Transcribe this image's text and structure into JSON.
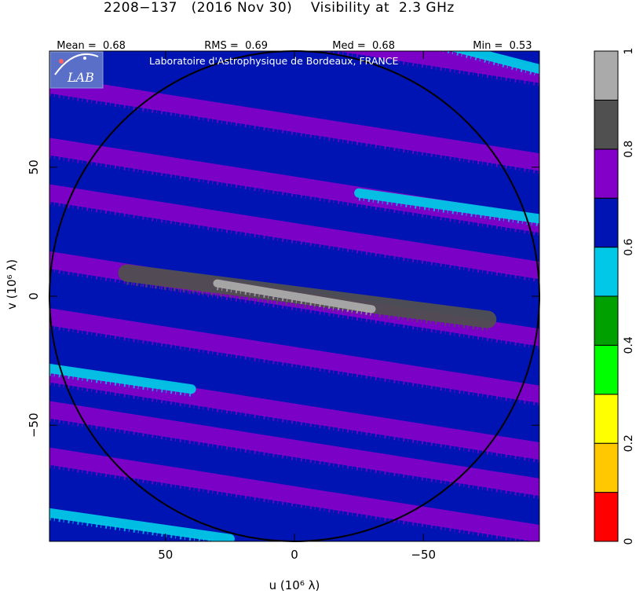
{
  "chart_data": {
    "type": "heatmap",
    "title": "2208−137   (2016 Nov 30)    Visibility at  2.3 GHz",
    "stats": [
      {
        "label": "Mean =",
        "value": "0.68"
      },
      {
        "label": "RMS =",
        "value": "0.69"
      },
      {
        "label": "Med =",
        "value": "0.68"
      },
      {
        "label": "Min =",
        "value": "0.53"
      }
    ],
    "watermark": "Laboratoire d'Astrophysique de Bordeaux, FRANCE",
    "logo_text": "LAB",
    "xlabel": "u  (10⁶ λ)",
    "ylabel": "v  (10⁶ λ)",
    "xlim": [
      95,
      -95
    ],
    "ylim": [
      -95,
      95
    ],
    "xticks": [
      {
        "value": 50,
        "label": "50"
      },
      {
        "value": 0,
        "label": "0"
      },
      {
        "value": -50,
        "label": "−50"
      }
    ],
    "yticks": [
      {
        "value": 50,
        "label": "50"
      },
      {
        "value": 0,
        "label": "0"
      },
      {
        "value": -50,
        "label": "−50"
      }
    ],
    "circle_radius": 95,
    "background_value": 0.65,
    "colorbar": {
      "range": [
        0,
        1
      ],
      "ticks": [
        {
          "value": 0,
          "label": "0"
        },
        {
          "value": 0.2,
          "label": "0.2"
        },
        {
          "value": 0.4,
          "label": "0.4"
        },
        {
          "value": 0.6,
          "label": "0.6"
        },
        {
          "value": 0.8,
          "label": "0.8"
        },
        {
          "value": 1,
          "label": "1"
        }
      ],
      "levels": [
        {
          "from": 0.0,
          "to": 0.1,
          "color": "#ff0000"
        },
        {
          "from": 0.1,
          "to": 0.2,
          "color": "#ffc800"
        },
        {
          "from": 0.2,
          "to": 0.3,
          "color": "#ffff00"
        },
        {
          "from": 0.3,
          "to": 0.4,
          "color": "#00ff00"
        },
        {
          "from": 0.4,
          "to": 0.5,
          "color": "#00a000"
        },
        {
          "from": 0.5,
          "to": 0.6,
          "color": "#00c8e6"
        },
        {
          "from": 0.6,
          "to": 0.7,
          "color": "#0014b4"
        },
        {
          "from": 0.7,
          "to": 0.8,
          "color": "#8200c8"
        },
        {
          "from": 0.8,
          "to": 0.9,
          "color": "#505050"
        },
        {
          "from": 0.9,
          "to": 1.0,
          "color": "#aaaaaa"
        }
      ]
    },
    "stripes": [
      {
        "u_start": 95,
        "v_start": 82,
        "u_end": -95,
        "v_end": 52,
        "value": 0.75
      },
      {
        "u_start": 95,
        "v_start": 58,
        "u_end": -95,
        "v_end": 28,
        "value": 0.75
      },
      {
        "u_start": 95,
        "v_start": 40,
        "u_end": -95,
        "v_end": 10,
        "value": 0.75
      },
      {
        "u_start": 95,
        "v_start": 14,
        "u_end": -95,
        "v_end": -16,
        "value": 0.75
      },
      {
        "u_start": 95,
        "v_start": -8,
        "u_end": -95,
        "v_end": -38,
        "value": 0.75
      },
      {
        "u_start": 95,
        "v_start": -30,
        "u_end": -95,
        "v_end": -60,
        "value": 0.75
      },
      {
        "u_start": 95,
        "v_start": -44,
        "u_end": -95,
        "v_end": -74,
        "value": 0.75
      },
      {
        "u_start": 95,
        "v_start": -62,
        "u_end": -95,
        "v_end": -92,
        "value": 0.75
      },
      {
        "u_start": 95,
        "v_start": 116,
        "u_end": -95,
        "v_end": 86,
        "value": 0.75
      },
      {
        "u_start": -10,
        "v_start": 110,
        "u_end": -95,
        "v_end": 88,
        "value": 0.55
      },
      {
        "u_start": -25,
        "v_start": 40,
        "u_end": -95,
        "v_end": 30,
        "value": 0.55
      },
      {
        "u_start": 95,
        "v_start": -28,
        "u_end": 40,
        "v_end": -36,
        "value": 0.55
      },
      {
        "u_start": 95,
        "v_start": -84,
        "u_end": 25,
        "v_end": -94,
        "value": 0.55
      },
      {
        "u_start": 65,
        "v_start": 9,
        "u_end": -75,
        "v_end": -9,
        "value": 0.85
      },
      {
        "u_start": 30,
        "v_start": 5,
        "u_end": -30,
        "v_end": -5,
        "value": 0.95
      }
    ]
  }
}
